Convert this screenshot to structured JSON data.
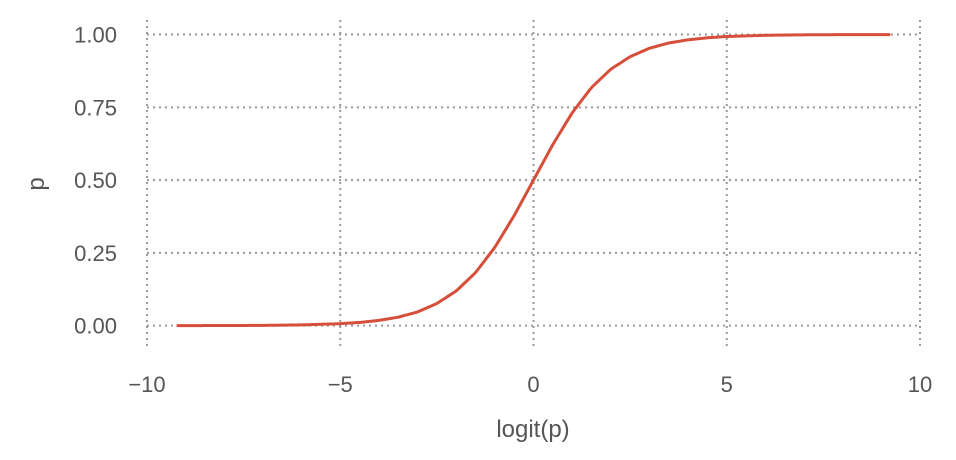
{
  "chart_data": {
    "type": "line",
    "title": "",
    "xlabel": "logit(p)",
    "ylabel": "p",
    "xlim": [
      -10,
      10
    ],
    "ylim": [
      -0.07,
      1.05
    ],
    "xticks": [
      -10,
      -5,
      0,
      5,
      10
    ],
    "xtick_labels": [
      "−10",
      "−5",
      "0",
      "5",
      "10"
    ],
    "yticks": [
      0.0,
      0.25,
      0.5,
      0.75,
      1.0
    ],
    "ytick_labels": [
      "0.00",
      "0.25",
      "0.50",
      "0.75",
      "1.00"
    ],
    "grid": true,
    "legend": "none",
    "series": [
      {
        "color": "#d64f3a",
        "points": [
          [
            -9.2,
            0.0001
          ],
          [
            -8.0,
            0.0003
          ],
          [
            -7.0,
            0.0009
          ],
          [
            -6.0,
            0.0025
          ],
          [
            -5.0,
            0.0067
          ],
          [
            -4.5,
            0.011
          ],
          [
            -4.0,
            0.018
          ],
          [
            -3.5,
            0.029
          ],
          [
            -3.0,
            0.047
          ],
          [
            -2.5,
            0.076
          ],
          [
            -2.0,
            0.119
          ],
          [
            -1.5,
            0.182
          ],
          [
            -1.0,
            0.269
          ],
          [
            -0.5,
            0.378
          ],
          [
            0.0,
            0.5
          ],
          [
            0.5,
            0.622
          ],
          [
            1.0,
            0.731
          ],
          [
            1.5,
            0.818
          ],
          [
            2.0,
            0.881
          ],
          [
            2.5,
            0.924
          ],
          [
            3.0,
            0.953
          ],
          [
            3.5,
            0.971
          ],
          [
            4.0,
            0.982
          ],
          [
            4.5,
            0.989
          ],
          [
            5.0,
            0.9933
          ],
          [
            6.0,
            0.9975
          ],
          [
            7.0,
            0.9991
          ],
          [
            8.0,
            0.9997
          ],
          [
            9.2,
            0.9999
          ]
        ]
      }
    ]
  }
}
